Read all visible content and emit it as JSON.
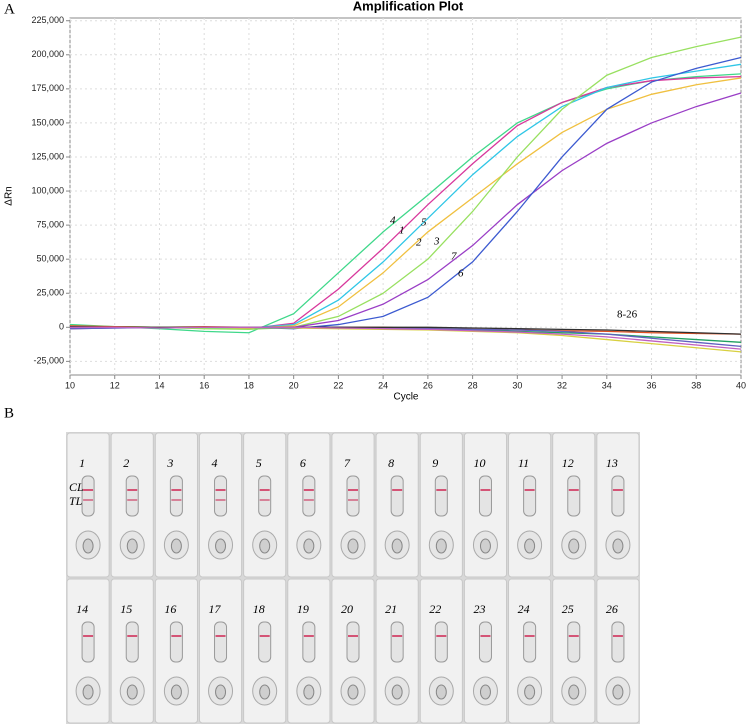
{
  "panels": [
    "A",
    "B"
  ],
  "chart_data": {
    "type": "line",
    "title": "Amplification Plot",
    "x_label": "Cycle",
    "y_label": "ΔRn",
    "x": [
      10,
      12,
      14,
      16,
      18,
      20,
      22,
      24,
      26,
      28,
      30,
      32,
      34,
      36,
      38,
      40
    ],
    "xlim": [
      10,
      40
    ],
    "xticks": [
      10,
      12,
      14,
      16,
      18,
      20,
      22,
      24,
      26,
      28,
      30,
      32,
      34,
      36,
      38,
      40
    ],
    "ylim": [
      -35000,
      227000
    ],
    "yticks": [
      {
        "value": -25000,
        "label": "-25,000"
      },
      0,
      {
        "value": 25000,
        "label": "25,000"
      },
      {
        "value": 50000,
        "label": "50,000"
      },
      {
        "value": 75000,
        "label": "75,000"
      },
      {
        "value": 100000,
        "label": "100,000"
      },
      {
        "value": 125000,
        "label": "125,000"
      },
      {
        "value": 150000,
        "label": "150,000"
      },
      {
        "value": 175000,
        "label": "175,000"
      },
      {
        "value": 200000,
        "label": "200,000"
      },
      {
        "value": 225000,
        "label": "225,000"
      }
    ],
    "grid": true,
    "series": [
      {
        "name": "4",
        "color": "#3fd88a",
        "values": [
          2000,
          500,
          -1000,
          -3000,
          -4000,
          10000,
          40000,
          70000,
          97000,
          125000,
          150000,
          165000,
          175000,
          181000,
          184000,
          186000
        ]
      },
      {
        "name": "1",
        "color": "#d8389c",
        "values": [
          0,
          0,
          0,
          -500,
          -1000,
          3000,
          28000,
          58000,
          90000,
          120000,
          148000,
          165000,
          176000,
          181000,
          183000,
          184000
        ]
      },
      {
        "name": "5",
        "color": "#2fc6e6",
        "values": [
          0,
          500,
          0,
          -500,
          -500,
          2000,
          20000,
          48000,
          80000,
          112000,
          140000,
          162000,
          176000,
          183000,
          188000,
          193000
        ]
      },
      {
        "name": "2",
        "color": "#f0c040",
        "values": [
          -1000,
          0,
          0,
          0,
          -500,
          1000,
          15000,
          40000,
          70000,
          95000,
          120000,
          143000,
          160000,
          171000,
          178000,
          183000
        ]
      },
      {
        "name": "3",
        "color": "#98e060",
        "values": [
          1000,
          500,
          0,
          -1000,
          -1500,
          0,
          8000,
          25000,
          50000,
          85000,
          125000,
          160000,
          185000,
          198000,
          206000,
          213000
        ]
      },
      {
        "name": "7",
        "color": "#9a3ec6",
        "values": [
          -1000,
          -500,
          0,
          0,
          0,
          0,
          5000,
          17000,
          35000,
          60000,
          90000,
          115000,
          135000,
          150000,
          162000,
          172000
        ]
      },
      {
        "name": "6",
        "color": "#3c5ad0",
        "values": [
          0,
          0,
          0,
          0,
          0,
          -1000,
          2000,
          8000,
          22000,
          48000,
          85000,
          125000,
          160000,
          180000,
          190000,
          198000
        ]
      },
      {
        "color": "#e05020",
        "values": [
          1000,
          500,
          0,
          500,
          0,
          0,
          0,
          0,
          -1000,
          -1500,
          -2000,
          -2500,
          -3000,
          -4000,
          -4500,
          -5000
        ]
      },
      {
        "color": "#20a060",
        "values": [
          0,
          0,
          0,
          0,
          0,
          0,
          -500,
          -1000,
          -1500,
          -2000,
          -3000,
          -4000,
          -5000,
          -7000,
          -9000,
          -11000
        ]
      },
      {
        "color": "#6060c0",
        "values": [
          -1000,
          -500,
          0,
          0,
          0,
          0,
          0,
          -500,
          -1000,
          -1500,
          -2000,
          -3000,
          -5000,
          -8000,
          -11000,
          -14000
        ]
      },
      {
        "color": "#d8d040",
        "values": [
          0,
          0,
          0,
          0,
          0,
          -500,
          -1000,
          -1500,
          -2000,
          -3000,
          -4000,
          -6000,
          -9000,
          -12000,
          -15000,
          -18000
        ]
      },
      {
        "color": "#303030",
        "values": [
          500,
          0,
          0,
          0,
          0,
          0,
          0,
          0,
          0,
          -500,
          -1000,
          -1500,
          -2000,
          -3000,
          -4000,
          -5000
        ]
      },
      {
        "color": "#c060c0",
        "values": [
          0,
          0,
          -500,
          0,
          0,
          0,
          -500,
          -1000,
          -1500,
          -2500,
          -3500,
          -5000,
          -7000,
          -10000,
          -13000,
          -16000
        ]
      }
    ],
    "annotations": [
      "8-26"
    ]
  },
  "photo": {
    "line_labels": [
      "CL",
      "TL"
    ],
    "strips": [
      {
        "label": "1",
        "tl": true
      },
      {
        "label": "2",
        "tl": true
      },
      {
        "label": "3",
        "tl": true
      },
      {
        "label": "4",
        "tl": true
      },
      {
        "label": "5",
        "tl": true
      },
      {
        "label": "6",
        "tl": true
      },
      {
        "label": "7",
        "tl": true
      },
      {
        "label": "8",
        "tl": false
      },
      {
        "label": "9",
        "tl": false
      },
      {
        "label": "10",
        "tl": false
      },
      {
        "label": "11",
        "tl": false
      },
      {
        "label": "12",
        "tl": false
      },
      {
        "label": "13",
        "tl": false
      },
      {
        "label": "14",
        "tl": false
      },
      {
        "label": "15",
        "tl": false
      },
      {
        "label": "16",
        "tl": false
      },
      {
        "label": "17",
        "tl": false
      },
      {
        "label": "18",
        "tl": false
      },
      {
        "label": "19",
        "tl": false
      },
      {
        "label": "20",
        "tl": false
      },
      {
        "label": "21",
        "tl": false
      },
      {
        "label": "22",
        "tl": false
      },
      {
        "label": "23",
        "tl": false
      },
      {
        "label": "24",
        "tl": false
      },
      {
        "label": "25",
        "tl": false
      },
      {
        "label": "26",
        "tl": false
      }
    ]
  }
}
